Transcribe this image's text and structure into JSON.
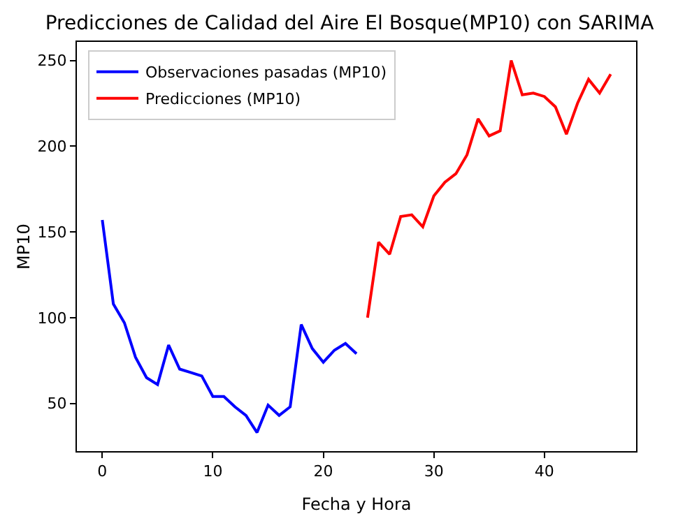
{
  "chart_data": {
    "type": "line",
    "title": "Predicciones de Calidad del Aire El Bosque(MP10) con SARIMA",
    "xlabel": "Fecha y Hora",
    "ylabel": "MP10",
    "xlim": [
      -2.3,
      48.3
    ],
    "xticks": [
      0,
      10,
      20,
      30,
      40
    ],
    "ylim": [
      22.15,
      260.85
    ],
    "yticks": [
      50,
      100,
      150,
      200,
      250
    ],
    "grid": false,
    "legend": "top left",
    "marker": "none",
    "line_style": "solid",
    "series": [
      {
        "name": "Observaciones pasadas (MP10)",
        "color": "#0000ff",
        "x": [
          0,
          1,
          2,
          3,
          4,
          5,
          6,
          7,
          8,
          9,
          10,
          11,
          12,
          13,
          14,
          15,
          16,
          17,
          18,
          19,
          20,
          21,
          22,
          23
        ],
        "values": [
          157,
          108,
          97,
          77,
          65,
          61,
          84,
          70,
          68,
          66,
          54,
          54,
          48,
          43,
          33,
          49,
          43,
          48,
          96,
          82,
          74,
          81,
          85,
          79
        ]
      },
      {
        "name": "Predicciones (MP10)",
        "color": "#ff0000",
        "x": [
          24,
          25,
          26,
          27,
          28,
          29,
          30,
          31,
          32,
          33,
          34,
          35,
          36,
          37,
          38,
          39,
          40,
          41,
          42,
          43,
          44,
          45,
          46
        ],
        "values": [
          100,
          144,
          137,
          159,
          160,
          153,
          171,
          179,
          184,
          195,
          216,
          206,
          209,
          250,
          230,
          231,
          229,
          223,
          207,
          225,
          239,
          231,
          242
        ]
      }
    ]
  }
}
